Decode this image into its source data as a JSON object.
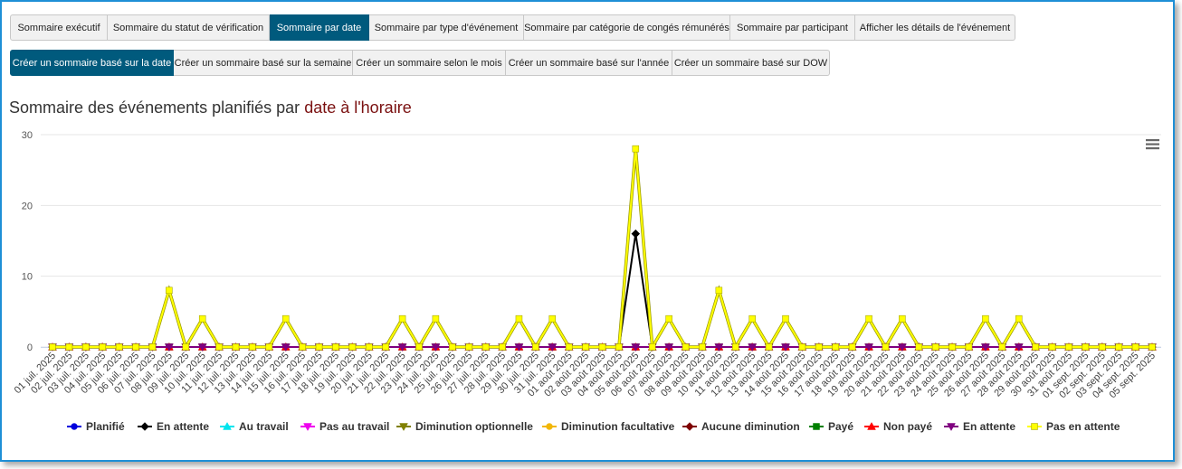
{
  "tabs": {
    "primary": [
      "Sommaire exécutif",
      "Sommaire du statut de vérification",
      "Sommaire par date",
      "Sommaire par type d'événement",
      "Sommaire par catégorie de congés rémunérés",
      "Sommaire par participant",
      "Afficher les détails de l'événement"
    ],
    "secondary": [
      "Créer un sommaire basé sur la date",
      "Créer un sommaire basé sur la semaine",
      "Créer un sommaire selon le mois",
      "Créer un sommaire basé sur l'année",
      "Créer un sommaire basé sur DOW"
    ]
  },
  "chart_data": {
    "type": "line",
    "title": [
      "Sommaire des événements planifiés par",
      "date à l'horaire"
    ],
    "categories": [
      "01 juil. 2025",
      "02 juil. 2025",
      "03 juil. 2025",
      "04 juil. 2025",
      "05 juil. 2025",
      "06 juil. 2025",
      "07 juil. 2025",
      "08 juil. 2025",
      "09 juil. 2025",
      "10 juil. 2025",
      "11 juil. 2025",
      "12 juil. 2025",
      "13 juil. 2025",
      "14 juil. 2025",
      "15 juil. 2025",
      "16 juil. 2025",
      "17 juil. 2025",
      "18 juil. 2025",
      "19 juil. 2025",
      "20 juil. 2025",
      "21 juil. 2025",
      "22 juil. 2025",
      "23 juil. 2025",
      "24 juil. 2025",
      "25 juil. 2025",
      "26 juil. 2025",
      "27 juil. 2025",
      "28 juil. 2025",
      "29 juil. 2025",
      "30 juil. 2025",
      "31 juil. 2025",
      "01 août 2025",
      "02 août 2025",
      "03 août 2025",
      "04 août 2025",
      "05 août 2025",
      "06 août 2025",
      "07 août 2025",
      "08 août 2025",
      "09 août 2025",
      "10 août 2025",
      "11 août 2025",
      "12 août 2025",
      "13 août 2025",
      "14 août 2025",
      "15 août 2025",
      "16 août 2025",
      "17 août 2025",
      "18 août 2025",
      "19 août 2025",
      "20 août 2025",
      "21 août 2025",
      "22 août 2025",
      "23 août 2025",
      "24 août 2025",
      "25 août 2025",
      "26 août 2025",
      "27 août 2025",
      "28 août 2025",
      "29 août 2025",
      "30 août 2025",
      "31 août 2025",
      "01 sept. 2025",
      "02 sept. 2025",
      "03 sept. 2025",
      "04 sept. 2025",
      "05 sept. 2025"
    ],
    "ylim": [
      0,
      30
    ],
    "yticks": [
      0,
      10,
      20,
      30
    ],
    "grid": true,
    "legend": "bottom",
    "series": [
      {
        "name": "Planifié",
        "color": "#0000dd",
        "values": [
          0,
          0,
          0,
          0,
          0,
          0,
          0,
          0,
          0,
          0,
          0,
          0,
          0,
          0,
          0,
          0,
          0,
          0,
          0,
          0,
          0,
          0,
          0,
          0,
          0,
          0,
          0,
          0,
          0,
          0,
          0,
          0,
          0,
          0,
          0,
          0,
          0,
          0,
          0,
          0,
          0,
          0,
          0,
          0,
          0,
          0,
          0,
          0,
          0,
          0,
          0,
          0,
          0,
          0,
          0,
          0,
          0,
          0,
          0,
          0,
          0,
          0,
          0,
          0,
          0,
          0,
          0
        ]
      },
      {
        "name": "En attente",
        "color": "#000000",
        "values": [
          0,
          0,
          0,
          0,
          0,
          0,
          0,
          0,
          0,
          0,
          0,
          0,
          0,
          0,
          0,
          0,
          0,
          0,
          0,
          0,
          0,
          0,
          0,
          0,
          0,
          0,
          0,
          0,
          0,
          0,
          0,
          0,
          0,
          0,
          0,
          16,
          0,
          0,
          0,
          0,
          0,
          0,
          0,
          0,
          0,
          0,
          0,
          0,
          0,
          0,
          0,
          0,
          0,
          0,
          0,
          0,
          0,
          0,
          0,
          0,
          0,
          0,
          0,
          0,
          0,
          0,
          0
        ]
      },
      {
        "name": "Au travail",
        "color": "#00e5ee",
        "values": [
          0,
          0,
          0,
          0,
          0,
          0,
          0,
          0,
          0,
          0,
          0,
          0,
          0,
          0,
          0,
          0,
          0,
          0,
          0,
          0,
          0,
          0,
          0,
          0,
          0,
          0,
          0,
          0,
          0,
          0,
          0,
          0,
          0,
          0,
          0,
          0,
          0,
          0,
          0,
          0,
          0,
          0,
          0,
          0,
          0,
          0,
          0,
          0,
          0,
          0,
          0,
          0,
          0,
          0,
          0,
          0,
          0,
          0,
          0,
          0,
          0,
          0,
          0,
          0,
          0,
          0,
          0
        ]
      },
      {
        "name": "Pas au travail",
        "color": "#ee00ee",
        "values": [
          0,
          0,
          0,
          0,
          0,
          0,
          0,
          0,
          0,
          0,
          0,
          0,
          0,
          0,
          0,
          0,
          0,
          0,
          0,
          0,
          0,
          0,
          0,
          0,
          0,
          0,
          0,
          0,
          0,
          0,
          0,
          0,
          0,
          0,
          0,
          0,
          0,
          0,
          0,
          0,
          0,
          0,
          0,
          0,
          0,
          0,
          0,
          0,
          0,
          0,
          0,
          0,
          0,
          0,
          0,
          0,
          0,
          0,
          0,
          0,
          0,
          0,
          0,
          0,
          0,
          0,
          0
        ]
      },
      {
        "name": "Diminution optionnelle",
        "color": "#808000",
        "values": [
          0,
          0,
          0,
          0,
          0,
          0,
          0,
          0,
          0,
          0,
          0,
          0,
          0,
          0,
          0,
          0,
          0,
          0,
          0,
          0,
          0,
          0,
          0,
          0,
          0,
          0,
          0,
          0,
          0,
          0,
          0,
          0,
          0,
          0,
          0,
          0,
          0,
          0,
          0,
          0,
          0,
          0,
          0,
          0,
          0,
          0,
          0,
          0,
          0,
          0,
          0,
          0,
          0,
          0,
          0,
          0,
          0,
          0,
          0,
          0,
          0,
          0,
          0,
          0,
          0,
          0,
          0
        ]
      },
      {
        "name": "Diminution facultative",
        "color": "#f2b705",
        "values": [
          0,
          0,
          0,
          0,
          0,
          0,
          0,
          0,
          0,
          0,
          0,
          0,
          0,
          0,
          0,
          0,
          0,
          0,
          0,
          0,
          0,
          0,
          0,
          0,
          0,
          0,
          0,
          0,
          0,
          0,
          0,
          0,
          0,
          0,
          0,
          0,
          0,
          0,
          0,
          0,
          0,
          0,
          0,
          0,
          0,
          0,
          0,
          0,
          0,
          0,
          0,
          0,
          0,
          0,
          0,
          0,
          0,
          0,
          0,
          0,
          0,
          0,
          0,
          0,
          0,
          0,
          0
        ]
      },
      {
        "name": "Aucune diminution",
        "color": "#800000",
        "values": [
          0,
          0,
          0,
          0,
          0,
          0,
          0,
          0,
          0,
          0,
          0,
          0,
          0,
          0,
          0,
          0,
          0,
          0,
          0,
          0,
          0,
          0,
          0,
          0,
          0,
          0,
          0,
          0,
          0,
          0,
          0,
          0,
          0,
          0,
          0,
          0,
          0,
          0,
          0,
          0,
          0,
          0,
          0,
          0,
          0,
          0,
          0,
          0,
          0,
          0,
          0,
          0,
          0,
          0,
          0,
          0,
          0,
          0,
          0,
          0,
          0,
          0,
          0,
          0,
          0,
          0,
          0
        ]
      },
      {
        "name": "Payé",
        "color": "#008000",
        "values": [
          0,
          0,
          0,
          0,
          0,
          0,
          0,
          0,
          0,
          0,
          0,
          0,
          0,
          0,
          0,
          0,
          0,
          0,
          0,
          0,
          0,
          0,
          0,
          0,
          0,
          0,
          0,
          0,
          0,
          0,
          0,
          0,
          0,
          0,
          0,
          0,
          0,
          0,
          0,
          0,
          0,
          0,
          0,
          0,
          0,
          0,
          0,
          0,
          0,
          0,
          0,
          0,
          0,
          0,
          0,
          0,
          0,
          0,
          0,
          0,
          0,
          0,
          0,
          0,
          0,
          0,
          0
        ]
      },
      {
        "name": "Non payé",
        "color": "#ff0000",
        "values": [
          0,
          0,
          0,
          0,
          0,
          0,
          0,
          0,
          0,
          0,
          0,
          0,
          0,
          0,
          0,
          0,
          0,
          0,
          0,
          0,
          0,
          0,
          0,
          0,
          0,
          0,
          0,
          0,
          0,
          0,
          0,
          0,
          0,
          0,
          0,
          0,
          0,
          0,
          0,
          0,
          0,
          0,
          0,
          0,
          0,
          0,
          0,
          0,
          0,
          0,
          0,
          0,
          0,
          0,
          0,
          0,
          0,
          0,
          0,
          0,
          0,
          0,
          0,
          0,
          0,
          0,
          0
        ]
      },
      {
        "name": "En attente",
        "color": "#800080",
        "values": [
          0,
          0,
          0,
          0,
          0,
          0,
          0,
          0,
          0,
          0,
          0,
          0,
          0,
          0,
          0,
          0,
          0,
          0,
          0,
          0,
          0,
          0,
          0,
          0,
          0,
          0,
          0,
          0,
          0,
          0,
          0,
          0,
          0,
          0,
          0,
          0,
          0,
          0,
          0,
          0,
          0,
          0,
          0,
          0,
          0,
          0,
          0,
          0,
          0,
          0,
          0,
          0,
          0,
          0,
          0,
          0,
          0,
          0,
          0,
          0,
          0,
          0,
          0,
          0,
          0,
          0,
          0
        ]
      },
      {
        "name": "Pas en attente",
        "color": "#ffff00",
        "values": [
          0,
          0,
          0,
          0,
          0,
          0,
          0,
          8,
          0,
          4,
          0,
          0,
          0,
          0,
          4,
          0,
          0,
          0,
          0,
          0,
          0,
          4,
          0,
          4,
          0,
          0,
          0,
          0,
          4,
          0,
          4,
          0,
          0,
          0,
          0,
          28,
          0,
          4,
          0,
          0,
          8,
          0,
          4,
          0,
          4,
          0,
          0,
          0,
          0,
          4,
          0,
          4,
          0,
          0,
          0,
          0,
          4,
          0,
          4,
          0,
          0,
          0,
          0,
          0,
          0,
          0,
          0
        ]
      }
    ]
  }
}
